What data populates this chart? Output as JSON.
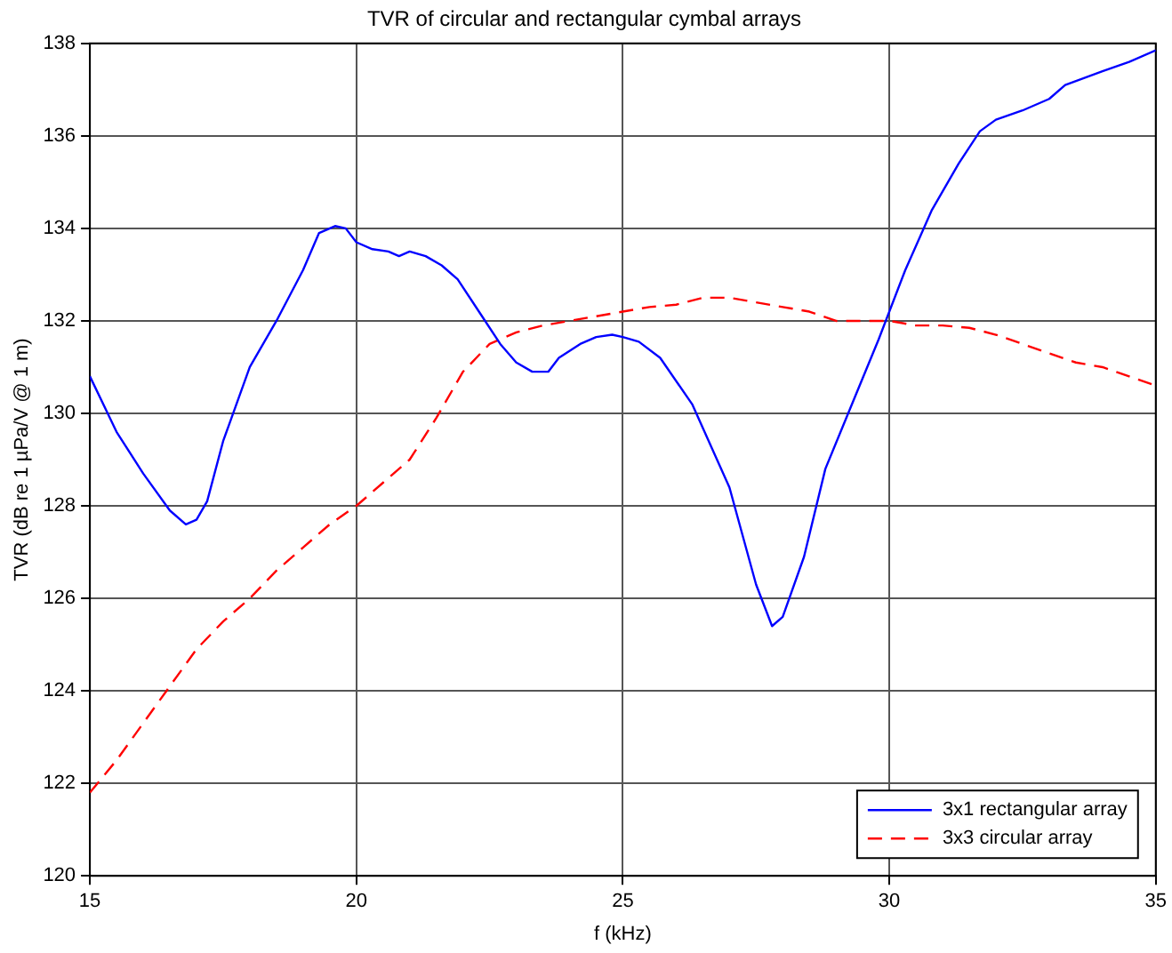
{
  "chart_data": {
    "type": "line",
    "title": "TVR of circular and rectangular cymbal arrays",
    "xlabel": "f (kHz)",
    "ylabel": "TVR (dB re 1 µPa/V @ 1 m)",
    "xlim": [
      15,
      35
    ],
    "xticks": [
      15,
      20,
      25,
      30,
      35
    ],
    "ylim": [
      120,
      138
    ],
    "yticks": [
      120,
      122,
      124,
      126,
      128,
      130,
      132,
      134,
      136,
      138
    ],
    "grid": true,
    "legend": "bottom right",
    "marker": "none",
    "series": [
      {
        "name": "3x1 rectangular array",
        "color": "#0000ff",
        "line_style": "solid",
        "x": [
          15,
          15.5,
          16,
          16.5,
          16.8,
          17,
          17.2,
          17.5,
          18,
          18.5,
          19,
          19.3,
          19.6,
          19.8,
          20,
          20.3,
          20.6,
          20.8,
          21,
          21.3,
          21.6,
          21.9,
          22.3,
          22.7,
          23,
          23.3,
          23.6,
          23.8,
          24.2,
          24.5,
          24.8,
          25,
          25.3,
          25.7,
          26.3,
          27,
          27.5,
          27.8,
          28,
          28.4,
          28.8,
          29.3,
          29.8,
          30.3,
          30.8,
          31.3,
          31.7,
          32,
          32.5,
          33,
          33.3,
          34,
          34.5,
          35
        ],
        "values": [
          130.8,
          129.6,
          128.7,
          127.9,
          127.6,
          127.7,
          128.1,
          129.4,
          131,
          132,
          133.1,
          133.9,
          134.05,
          134,
          133.7,
          133.55,
          133.5,
          133.4,
          133.5,
          133.4,
          133.2,
          132.9,
          132.2,
          131.5,
          131.1,
          130.9,
          130.9,
          131.2,
          131.5,
          131.65,
          131.7,
          131.65,
          131.55,
          131.2,
          130.2,
          128.4,
          126.3,
          125.4,
          125.6,
          126.9,
          128.8,
          130.2,
          131.6,
          133.1,
          134.4,
          135.4,
          136.1,
          136.35,
          136.55,
          136.8,
          137.1,
          137.4,
          137.6,
          137.85
        ]
      },
      {
        "name": "3x3 circular array",
        "color": "#ff0000",
        "line_style": "dashed",
        "x": [
          15,
          15.5,
          16,
          16.5,
          17,
          17.5,
          18,
          18.5,
          19,
          19.5,
          20,
          20.5,
          21,
          21.5,
          22,
          22.5,
          23,
          23.5,
          24,
          24.5,
          25,
          25.5,
          26,
          26.5,
          27,
          27.5,
          28,
          28.5,
          29,
          29.5,
          30,
          30.5,
          31,
          31.5,
          32,
          32.5,
          33,
          33.5,
          34,
          34.5,
          35
        ],
        "values": [
          121.8,
          122.5,
          123.3,
          124.1,
          124.9,
          125.5,
          126.0,
          126.6,
          127.1,
          127.6,
          128.0,
          128.5,
          129.0,
          129.9,
          130.9,
          131.5,
          131.75,
          131.9,
          132.0,
          132.1,
          132.2,
          132.3,
          132.35,
          132.5,
          132.5,
          132.4,
          132.3,
          132.2,
          132.0,
          132.0,
          132.0,
          131.9,
          131.9,
          131.85,
          131.7,
          131.5,
          131.3,
          131.1,
          131.0,
          130.8,
          130.6
        ]
      }
    ]
  }
}
